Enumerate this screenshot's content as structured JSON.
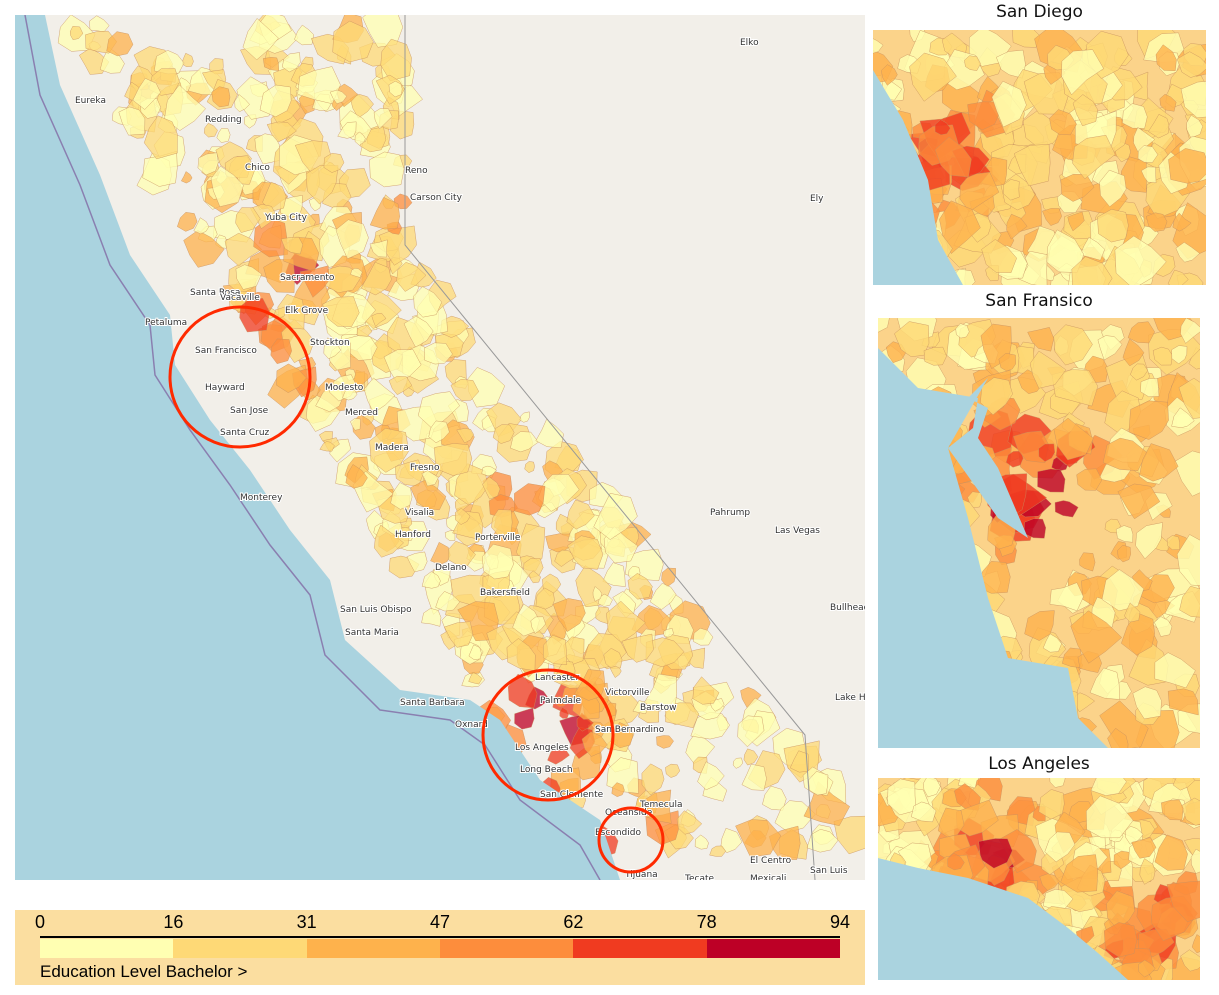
{
  "main_map": {
    "places": [
      "Eureka",
      "Redding",
      "Chico",
      "Yuba City",
      "Sacramento",
      "Santa Rosa",
      "Vacaville",
      "Elk Grove",
      "Petaluma",
      "San Francisco",
      "Hayward",
      "San Jose",
      "Santa Cruz",
      "Stockton",
      "Modesto",
      "Merced",
      "Madera",
      "Fresno",
      "Monterey",
      "Visalia",
      "Hanford",
      "Porterville",
      "Delano",
      "Bakersfield",
      "San Luis Obispo",
      "Santa Maria",
      "Santa Barbara",
      "Oxnard",
      "Lancaster",
      "Palmdale",
      "Victorville",
      "Barstow",
      "Los Angeles",
      "Long Beach",
      "San Bernardino",
      "San Clemente",
      "Oceanside",
      "Temecula",
      "Escondido",
      "Tijuana",
      "Tecate",
      "Mexicali",
      "El Centro",
      "San Luis",
      "Reno",
      "Carson City",
      "Elko",
      "Ely",
      "Pahrump",
      "Las Vegas",
      "Bullhead City",
      "Lake Havasu"
    ],
    "highlight_circles": [
      "San Francisco Bay Area",
      "Los Angeles",
      "San Diego"
    ],
    "colors": {
      "ocean": "#aad3df",
      "land": "#f2efe9",
      "highlight": "#ff2a00"
    }
  },
  "insets": [
    {
      "title": "San Diego"
    },
    {
      "title": "San Fransico"
    },
    {
      "title": "Los Angeles"
    }
  ],
  "legend": {
    "title": "Education Level Bachelor >",
    "ticks": [
      "0",
      "16",
      "31",
      "47",
      "62",
      "78",
      "94"
    ],
    "colors": [
      "#ffffb2",
      "#fed976",
      "#feb24c",
      "#fd8d3c",
      "#f03b20",
      "#bd0026"
    ]
  }
}
